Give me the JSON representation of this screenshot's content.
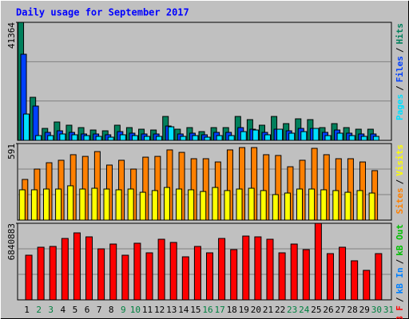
{
  "chart_data": [
    {
      "type": "bar",
      "title": "Daily usage for September 2017",
      "legend_separator": "/",
      "categories": [
        "1",
        "2",
        "3",
        "4",
        "5",
        "6",
        "7",
        "8",
        "9",
        "10",
        "11",
        "12",
        "13",
        "14",
        "15",
        "16",
        "17",
        "18",
        "19",
        "20",
        "21",
        "22",
        "23",
        "24",
        "25",
        "26",
        "27",
        "28",
        "29",
        "30",
        "31"
      ],
      "ylim": [
        0,
        41364
      ],
      "yticks": [
        41364
      ],
      "grid": true,
      "series": [
        {
          "name": "Pages",
          "color": "#00E0FF",
          "values": [
            9220,
            1680,
            1680,
            2240,
            1960,
            1680,
            1400,
            1120,
            1960,
            1680,
            1400,
            1400,
            4750,
            1400,
            1680,
            1120,
            1680,
            1680,
            3070,
            3630,
            1960,
            3910,
            2520,
            3070,
            4190,
            1680,
            2520,
            1680,
            1400,
            1400,
            null
          ]
        },
        {
          "name": "Files",
          "color": "#0040FF",
          "values": [
            30180,
            12020,
            2800,
            3350,
            2800,
            2240,
            2240,
            1960,
            3070,
            2520,
            2240,
            2240,
            5030,
            2240,
            2520,
            1960,
            2800,
            2800,
            4470,
            3910,
            2800,
            3910,
            3350,
            4190,
            4190,
            2800,
            3630,
            2520,
            2240,
            2240,
            null
          ]
        },
        {
          "name": "Hits",
          "color": "#00805C",
          "values": [
            41364,
            15090,
            4190,
            6430,
            5310,
            4470,
            3630,
            3350,
            5310,
            4470,
            3910,
            3630,
            8380,
            3910,
            4470,
            3070,
            4470,
            4470,
            8380,
            7270,
            5310,
            8380,
            5870,
            7550,
            7270,
            4470,
            5870,
            4470,
            3910,
            3910,
            null
          ]
        }
      ]
    },
    {
      "type": "bar",
      "legend_separator": "/",
      "categories": [
        "1",
        "2",
        "3",
        "4",
        "5",
        "6",
        "7",
        "8",
        "9",
        "10",
        "11",
        "12",
        "13",
        "14",
        "15",
        "16",
        "17",
        "18",
        "19",
        "20",
        "21",
        "22",
        "23",
        "24",
        "25",
        "26",
        "27",
        "28",
        "29",
        "30",
        "31"
      ],
      "ylim": [
        0,
        591
      ],
      "yticks": [
        591
      ],
      "grid": true,
      "series": [
        {
          "name": "Sites",
          "color": "#FF8000",
          "values": [
            314,
            394,
            443,
            462,
            505,
            492,
            529,
            425,
            462,
            394,
            486,
            492,
            542,
            523,
            474,
            474,
            449,
            542,
            560,
            560,
            505,
            499,
            412,
            462,
            554,
            505,
            474,
            474,
            449,
            382,
            null
          ]
        },
        {
          "name": "Visits",
          "color": "#FFFF00",
          "values": [
            234,
            234,
            240,
            240,
            265,
            240,
            246,
            240,
            234,
            240,
            215,
            228,
            252,
            240,
            234,
            221,
            252,
            228,
            240,
            246,
            228,
            197,
            209,
            240,
            240,
            234,
            228,
            215,
            228,
            209,
            null
          ]
        }
      ]
    },
    {
      "type": "bar",
      "legend_separator": "/",
      "categories": [
        "1",
        "2",
        "3",
        "4",
        "5",
        "6",
        "7",
        "8",
        "9",
        "10",
        "11",
        "12",
        "13",
        "14",
        "15",
        "16",
        "17",
        "18",
        "19",
        "20",
        "21",
        "22",
        "23",
        "24",
        "25",
        "26",
        "27",
        "28",
        "29",
        "30",
        "31"
      ],
      "category_colors": [
        "#000000",
        "#008040",
        "#008040",
        "#000000",
        "#000000",
        "#000000",
        "#000000",
        "#000000",
        "#008040",
        "#008040",
        "#000000",
        "#000000",
        "#000000",
        "#000000",
        "#000000",
        "#008040",
        "#008040",
        "#000000",
        "#000000",
        "#000000",
        "#000000",
        "#000000",
        "#008040",
        "#008040",
        "#000000",
        "#000000",
        "#000000",
        "#000000",
        "#000000",
        "#008040",
        "#008040"
      ],
      "ylim": [
        0,
        6840883
      ],
      "yticks": [
        6840883
      ],
      "grid": true,
      "series": [
        {
          "name": "kB F",
          "color": "#FF0000",
          "values": [
            3990515,
            4703000,
            4774000,
            5487000,
            5985700,
            5630000,
            4560000,
            4988000,
            3990000,
            5060000,
            4204000,
            5416000,
            5131000,
            3848000,
            4774000,
            4204000,
            5487000,
            4489000,
            5701000,
            5630000,
            5416000,
            4204000,
            4988000,
            4489000,
            6840883,
            4133000,
            4703000,
            3492000,
            2637000,
            4133000,
            null
          ]
        },
        {
          "name": "kB In",
          "color": "#0080FF",
          "values": [
            0,
            0,
            0,
            0,
            0,
            0,
            0,
            0,
            0,
            0,
            0,
            0,
            0,
            0,
            0,
            0,
            0,
            0,
            0,
            0,
            0,
            0,
            0,
            0,
            0,
            0,
            0,
            0,
            0,
            0,
            null
          ]
        },
        {
          "name": "kB Out",
          "color": "#00C000",
          "values": [
            0,
            0,
            0,
            0,
            0,
            0,
            0,
            0,
            0,
            0,
            0,
            0,
            0,
            0,
            0,
            0,
            0,
            0,
            0,
            0,
            0,
            0,
            0,
            0,
            0,
            0,
            0,
            0,
            0,
            0,
            null
          ]
        }
      ]
    }
  ]
}
